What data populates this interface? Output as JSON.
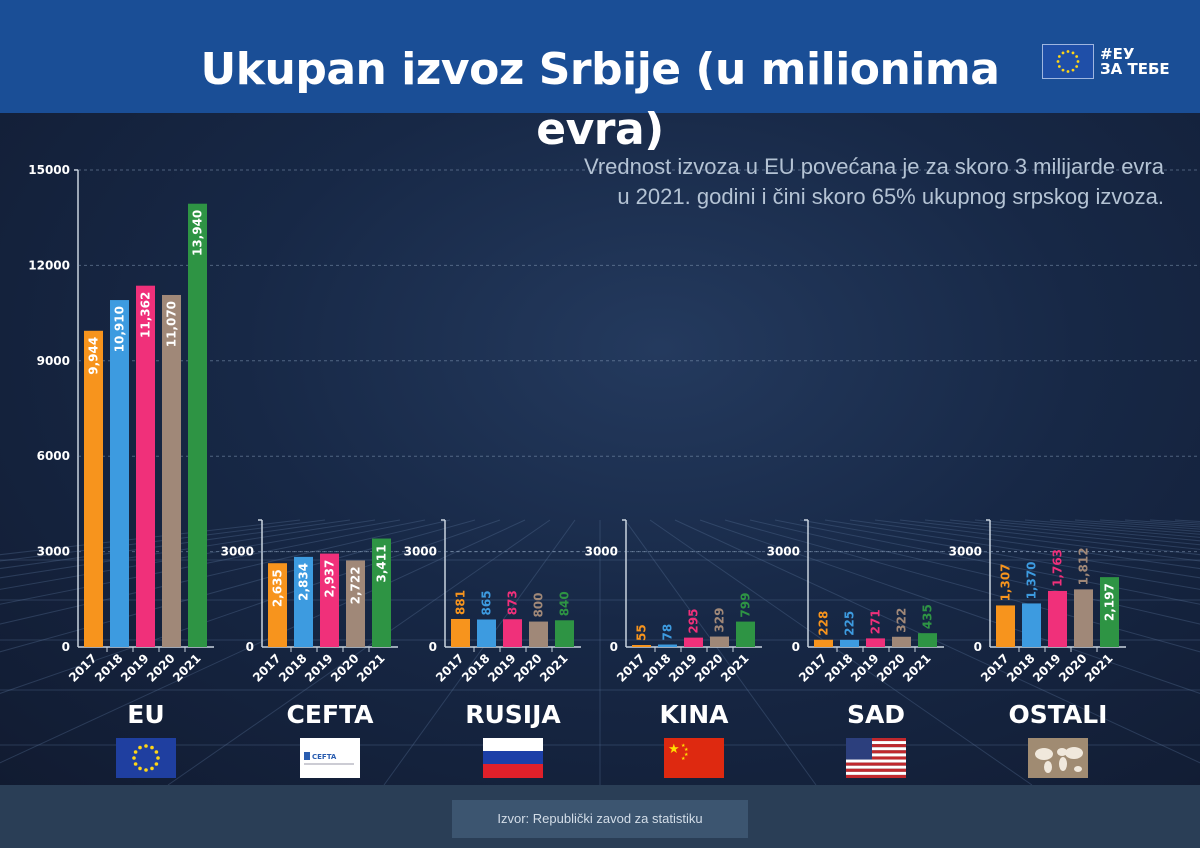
{
  "header": {
    "title": "Ukupan izvoz Srbije (u milionima evra)",
    "logo_text_1": "#ЕУ",
    "logo_text_2": "ЗА ТЕБЕ",
    "color": "#1a4e96"
  },
  "subtitle": {
    "line1": "Vrednost izvoza u EU povećana je za skoro 3 milijarde evra",
    "line2": "u 2021. godini i čini skoro 65% ukupnog srpskog izvoza."
  },
  "footer": {
    "source": "Izvor: Republički zavod za statistiku"
  },
  "year_colors": {
    "2017": "#f7941d",
    "2018": "#3d9be0",
    "2019": "#f0307a",
    "2020": "#a08878",
    "2021": "#2e9444"
  },
  "chart_data": [
    {
      "type": "bar",
      "region": "EU",
      "flag": "eu-flag",
      "categories": [
        "2017",
        "2018",
        "2019",
        "2020",
        "2021"
      ],
      "values": [
        9944,
        10910,
        11362,
        11070,
        13940
      ],
      "labels": [
        "9,944",
        "10,910",
        "11,362",
        "11,070",
        "13,940"
      ],
      "ylim": [
        0,
        15000
      ],
      "yticks": [
        "0",
        "3000",
        "6000",
        "9000",
        "12000",
        "15000"
      ],
      "grid": true
    },
    {
      "type": "bar",
      "region": "CEFTA",
      "flag": "cefta-logo",
      "categories": [
        "2017",
        "2018",
        "2019",
        "2020",
        "2021"
      ],
      "values": [
        2635,
        2834,
        2937,
        2722,
        3411
      ],
      "labels": [
        "2,635",
        "2,834",
        "2,937",
        "2,722",
        "3,411"
      ],
      "yticks": [
        "0",
        "3000"
      ]
    },
    {
      "type": "bar",
      "region": "RUSIJA",
      "flag": "russia-flag",
      "categories": [
        "2017",
        "2018",
        "2019",
        "2020",
        "2021"
      ],
      "values": [
        881,
        865,
        873,
        800,
        840
      ],
      "labels": [
        "881",
        "865",
        "873",
        "800",
        "840"
      ],
      "yticks": [
        "0",
        "3000"
      ]
    },
    {
      "type": "bar",
      "region": "KINA",
      "flag": "china-flag",
      "categories": [
        "2017",
        "2018",
        "2019",
        "2020",
        "2021"
      ],
      "values": [
        55,
        78,
        295,
        329,
        799
      ],
      "labels": [
        "55",
        "78",
        "295",
        "329",
        "799"
      ],
      "yticks": [
        "0",
        "3000"
      ]
    },
    {
      "type": "bar",
      "region": "SAD",
      "flag": "usa-flag",
      "categories": [
        "2017",
        "2018",
        "2019",
        "2020",
        "2021"
      ],
      "values": [
        228,
        225,
        271,
        322,
        435
      ],
      "labels": [
        "228",
        "225",
        "271",
        "322",
        "435"
      ],
      "yticks": [
        "0",
        "3000"
      ]
    },
    {
      "type": "bar",
      "region": "OSTALI",
      "flag": "world-map-icon",
      "categories": [
        "2017",
        "2018",
        "2019",
        "2020",
        "2021"
      ],
      "values": [
        1307,
        1370,
        1763,
        1812,
        2197
      ],
      "labels": [
        "1,307",
        "1,370",
        "1,763",
        "1,812",
        "2,197"
      ],
      "yticks": [
        "0",
        "3000"
      ]
    }
  ]
}
